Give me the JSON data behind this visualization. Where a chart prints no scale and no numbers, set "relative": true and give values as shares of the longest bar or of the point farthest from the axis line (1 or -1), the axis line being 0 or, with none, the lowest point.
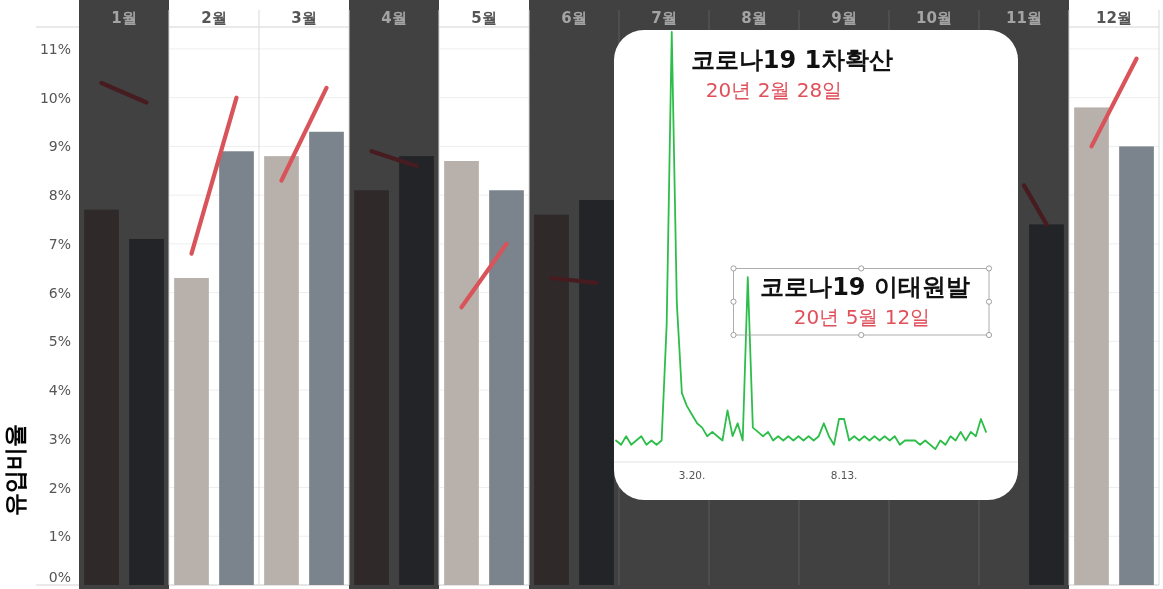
{
  "chart_data": [
    {
      "type": "bar",
      "ylabel": "유입비율",
      "xlim": [
        0.5,
        12.5
      ],
      "xticks": [
        {
          "value": 1,
          "label": "1월"
        },
        {
          "value": 2,
          "label": "2월"
        },
        {
          "value": 3,
          "label": "3월"
        },
        {
          "value": 4,
          "label": "4월"
        },
        {
          "value": 5,
          "label": "5월"
        },
        {
          "value": 6,
          "label": "6월"
        },
        {
          "value": 7,
          "label": "7월"
        },
        {
          "value": 8,
          "label": "8월"
        },
        {
          "value": 9,
          "label": "9월"
        },
        {
          "value": 10,
          "label": "10월"
        },
        {
          "value": 11,
          "label": "11월"
        },
        {
          "value": 12,
          "label": "12월"
        }
      ],
      "ylim": [
        0,
        11.45
      ],
      "yticks": [
        {
          "value": 0,
          "label": "0%"
        },
        {
          "value": 1,
          "label": "1%"
        },
        {
          "value": 2,
          "label": "2%"
        },
        {
          "value": 3,
          "label": "3%"
        },
        {
          "value": 4,
          "label": "4%"
        },
        {
          "value": 5,
          "label": "5%"
        },
        {
          "value": 6,
          "label": "6%"
        },
        {
          "value": 7,
          "label": "7%"
        },
        {
          "value": 8,
          "label": "8%"
        },
        {
          "value": 9,
          "label": "9%"
        },
        {
          "value": 10,
          "label": "10%"
        },
        {
          "value": 11,
          "label": "11%"
        }
      ],
      "grid": "y",
      "bands": [
        {
          "axis": "x",
          "from": 0.5,
          "to": 1.5,
          "color": "#414141"
        },
        {
          "axis": "x",
          "from": 3.5,
          "to": 4.5,
          "color": "#414141"
        },
        {
          "axis": "x",
          "from": 5.5,
          "to": 11.5,
          "color": "#414141"
        }
      ],
      "ref_lines": [
        {
          "axis": "x",
          "value": 1.5,
          "color": "#d9d9d9"
        },
        {
          "axis": "x",
          "value": 2.5,
          "color": "#d9d9d9"
        },
        {
          "axis": "x",
          "value": 3.5,
          "color": "#d9d9d9"
        },
        {
          "axis": "x",
          "value": 4.5,
          "color": "#d9d9d9"
        },
        {
          "axis": "x",
          "value": 5.5,
          "color": "#d9d9d9"
        },
        {
          "axis": "x",
          "value": 6.5,
          "color": "#d9d9d9"
        },
        {
          "axis": "x",
          "value": 7.5,
          "color": "#d9d9d9"
        },
        {
          "axis": "x",
          "value": 8.5,
          "color": "#d9d9d9"
        },
        {
          "axis": "x",
          "value": 9.5,
          "color": "#d9d9d9"
        },
        {
          "axis": "x",
          "value": 10.5,
          "color": "#d9d9d9"
        },
        {
          "axis": "x",
          "value": 11.5,
          "color": "#d9d9d9"
        },
        {
          "axis": "x",
          "value": 12.5,
          "color": "#d9d9d9"
        }
      ],
      "series": [
        {
          "x": [
            1,
            2,
            3,
            4,
            5,
            6,
            12
          ],
          "colors": [
            "#2f2a29",
            "#b8b1ab",
            "#b8b1ab",
            "#2f2a29",
            "#b8b1ab",
            "#2f2a29",
            "#b8b1ab"
          ],
          "values": [
            7.7,
            6.3,
            8.8,
            8.1,
            8.7,
            7.6,
            9.8
          ]
        },
        {
          "x": [
            1,
            2,
            3,
            4,
            5,
            6,
            11,
            12
          ],
          "colors": [
            "#222428",
            "#7b838d",
            "#7b838d",
            "#222428",
            "#7b838d",
            "#222428",
            "#222428",
            "#7b838d"
          ],
          "values": [
            7.1,
            8.9,
            9.3,
            8.8,
            8.1,
            7.9,
            7.4,
            9.0
          ]
        },
        {
          "type": "line",
          "color": "#d9545a",
          "x": [
            1.75,
            2.25,
            2.5,
            2.75,
            3.25,
            3.5,
            4.75,
            5.25,
            5.5,
            11.75,
            12.25
          ],
          "values": [
            6.8,
            10.0,
            null,
            8.3,
            10.2,
            null,
            5.7,
            7.0,
            null,
            9.0,
            10.8
          ]
        },
        {
          "type": "line",
          "color": "#471c21",
          "x": [
            0.75,
            1.25,
            1.5,
            3.75,
            4.25,
            4.5,
            5.75,
            6.25,
            6.5,
            11.0,
            11.25
          ],
          "values": [
            10.3,
            9.9,
            null,
            8.9,
            8.6,
            null,
            6.3,
            6.2,
            null,
            8.2,
            7.4
          ]
        }
      ]
    },
    {
      "type": "line",
      "relative": true,
      "categories": [
        null,
        null,
        null,
        null,
        null,
        null,
        null,
        null,
        null,
        null,
        null,
        null,
        null,
        null,
        null,
        "3.20.",
        null,
        null,
        null,
        null,
        null,
        null,
        null,
        null,
        null,
        null,
        null,
        null,
        null,
        null,
        null,
        null,
        null,
        null,
        null,
        null,
        null,
        null,
        null,
        null,
        null,
        null,
        null,
        null,
        null,
        "8.13.",
        null,
        null,
        null,
        null,
        null,
        null,
        null,
        null,
        null,
        null,
        null,
        null,
        null,
        null,
        null,
        null,
        null,
        null,
        null,
        null,
        null,
        null,
        null,
        null,
        null,
        null,
        null,
        null
      ],
      "series": [
        {
          "color": "#2dbe4a",
          "values": [
            0.05,
            0.04,
            0.06,
            0.04,
            0.05,
            0.06,
            0.04,
            0.05,
            0.04,
            0.05,
            0.32,
            1,
            0.37,
            0.16,
            0.13,
            0.11,
            0.09,
            0.08,
            0.06,
            0.07,
            0.06,
            0.05,
            0.12,
            0.06,
            0.09,
            0.05,
            0.43,
            0.08,
            0.07,
            0.06,
            0.07,
            0.05,
            0.06,
            0.05,
            0.06,
            0.05,
            0.06,
            0.05,
            0.06,
            0.05,
            0.06,
            0.09,
            0.06,
            0.04,
            0.1,
            0.1,
            0.05,
            0.06,
            0.05,
            0.06,
            0.05,
            0.06,
            0.05,
            0.06,
            0.05,
            0.06,
            0.04,
            0.05,
            0.05,
            0.05,
            0.04,
            0.05,
            0.04,
            0.03,
            0.05,
            0.04,
            0.06,
            0.05,
            0.07,
            0.05,
            0.07,
            0.06,
            0.1,
            0.07
          ]
        }
      ],
      "annotations": [
        "코로나19 1차확산",
        "20년 2월 28일",
        "코로나19 이태원발",
        "20년 5월 12일"
      ]
    }
  ]
}
